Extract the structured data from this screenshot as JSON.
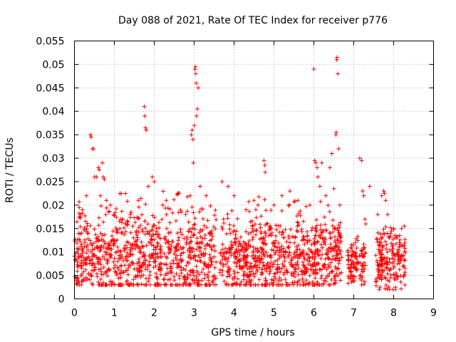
{
  "chart_data": {
    "type": "scatter",
    "title": "Day 088 of 2021, Rate Of TEC Index for receiver p776",
    "xlabel": "GPS time / hours",
    "ylabel": "ROTI / TECUs",
    "xlim": [
      0,
      9
    ],
    "ylim": [
      0,
      0.055
    ],
    "x_ticks": [
      "0",
      "1",
      "2",
      "3",
      "4",
      "5",
      "6",
      "7",
      "8",
      "9"
    ],
    "y_ticks": [
      "0",
      "0.005",
      "0.01",
      "0.015",
      "0.02",
      "0.025",
      "0.03",
      "0.035",
      "0.04",
      "0.045",
      "0.05",
      "0.055"
    ],
    "grid": true,
    "marker": "+",
    "color": "#ff0000",
    "clusters": [
      {
        "x_start": 0.0,
        "x_end": 3.55,
        "y_min": 0.003,
        "y_max": 0.023,
        "y_center": 0.009,
        "n": 900
      },
      {
        "x_start": 3.65,
        "x_end": 6.7,
        "y_min": 0.003,
        "y_max": 0.022,
        "y_center": 0.009,
        "n": 800
      },
      {
        "x_start": 6.85,
        "x_end": 7.3,
        "y_min": 0.003,
        "y_max": 0.014,
        "y_center": 0.008,
        "n": 110
      },
      {
        "x_start": 7.55,
        "x_end": 8.3,
        "y_min": 0.002,
        "y_max": 0.016,
        "y_center": 0.008,
        "n": 200
      }
    ],
    "points": [
      [
        0.15,
        0.018
      ],
      [
        0.2,
        0.019
      ],
      [
        0.3,
        0.022
      ],
      [
        0.4,
        0.035
      ],
      [
        0.42,
        0.0345
      ],
      [
        0.45,
        0.032
      ],
      [
        0.48,
        0.032
      ],
      [
        0.5,
        0.026
      ],
      [
        0.55,
        0.026
      ],
      [
        0.6,
        0.028
      ],
      [
        0.62,
        0.0275
      ],
      [
        0.65,
        0.022
      ],
      [
        0.7,
        0.029
      ],
      [
        0.72,
        0.026
      ],
      [
        0.75,
        0.0255
      ],
      [
        0.8,
        0.021
      ],
      [
        0.9,
        0.02
      ],
      [
        1.2,
        0.017
      ],
      [
        1.4,
        0.018
      ],
      [
        1.6,
        0.021
      ],
      [
        1.75,
        0.041
      ],
      [
        1.76,
        0.039
      ],
      [
        1.78,
        0.0365
      ],
      [
        1.8,
        0.036
      ],
      [
        1.85,
        0.024
      ],
      [
        1.95,
        0.026
      ],
      [
        2.0,
        0.025
      ],
      [
        2.3,
        0.021
      ],
      [
        2.6,
        0.0225
      ],
      [
        2.9,
        0.022
      ],
      [
        2.93,
        0.035
      ],
      [
        2.95,
        0.036
      ],
      [
        2.97,
        0.034
      ],
      [
        2.98,
        0.029
      ],
      [
        3.0,
        0.037
      ],
      [
        3.02,
        0.049
      ],
      [
        3.03,
        0.0495
      ],
      [
        3.04,
        0.048
      ],
      [
        3.05,
        0.046
      ],
      [
        3.06,
        0.039
      ],
      [
        3.08,
        0.0405
      ],
      [
        3.1,
        0.045
      ],
      [
        3.15,
        0.024
      ],
      [
        3.3,
        0.022
      ],
      [
        3.7,
        0.025
      ],
      [
        3.85,
        0.024
      ],
      [
        4.0,
        0.022
      ],
      [
        4.3,
        0.019
      ],
      [
        4.5,
        0.021
      ],
      [
        4.6,
        0.02
      ],
      [
        4.75,
        0.0295
      ],
      [
        4.77,
        0.0285
      ],
      [
        4.78,
        0.027
      ],
      [
        5.0,
        0.02
      ],
      [
        5.2,
        0.022
      ],
      [
        5.4,
        0.023
      ],
      [
        5.6,
        0.021
      ],
      [
        5.9,
        0.02
      ],
      [
        6.0,
        0.049
      ],
      [
        6.02,
        0.0295
      ],
      [
        6.05,
        0.029
      ],
      [
        6.08,
        0.028
      ],
      [
        6.1,
        0.026
      ],
      [
        6.15,
        0.024
      ],
      [
        6.2,
        0.029
      ],
      [
        6.3,
        0.022
      ],
      [
        6.4,
        0.028
      ],
      [
        6.45,
        0.031
      ],
      [
        6.5,
        0.0235
      ],
      [
        6.55,
        0.035
      ],
      [
        6.56,
        0.0355
      ],
      [
        6.57,
        0.051
      ],
      [
        6.58,
        0.0515
      ],
      [
        6.6,
        0.048
      ],
      [
        6.62,
        0.032
      ],
      [
        6.65,
        0.02
      ],
      [
        7.15,
        0.03
      ],
      [
        7.2,
        0.0295
      ],
      [
        7.22,
        0.023
      ],
      [
        7.25,
        0.022
      ],
      [
        7.28,
        0.017
      ],
      [
        7.3,
        0.016
      ],
      [
        7.4,
        0.024
      ],
      [
        7.6,
        0.018
      ],
      [
        7.7,
        0.022
      ],
      [
        7.75,
        0.023
      ],
      [
        7.77,
        0.0225
      ],
      [
        7.8,
        0.021
      ],
      [
        7.85,
        0.018
      ],
      [
        8.0,
        0.015
      ],
      [
        8.2,
        0.015
      ]
    ]
  }
}
